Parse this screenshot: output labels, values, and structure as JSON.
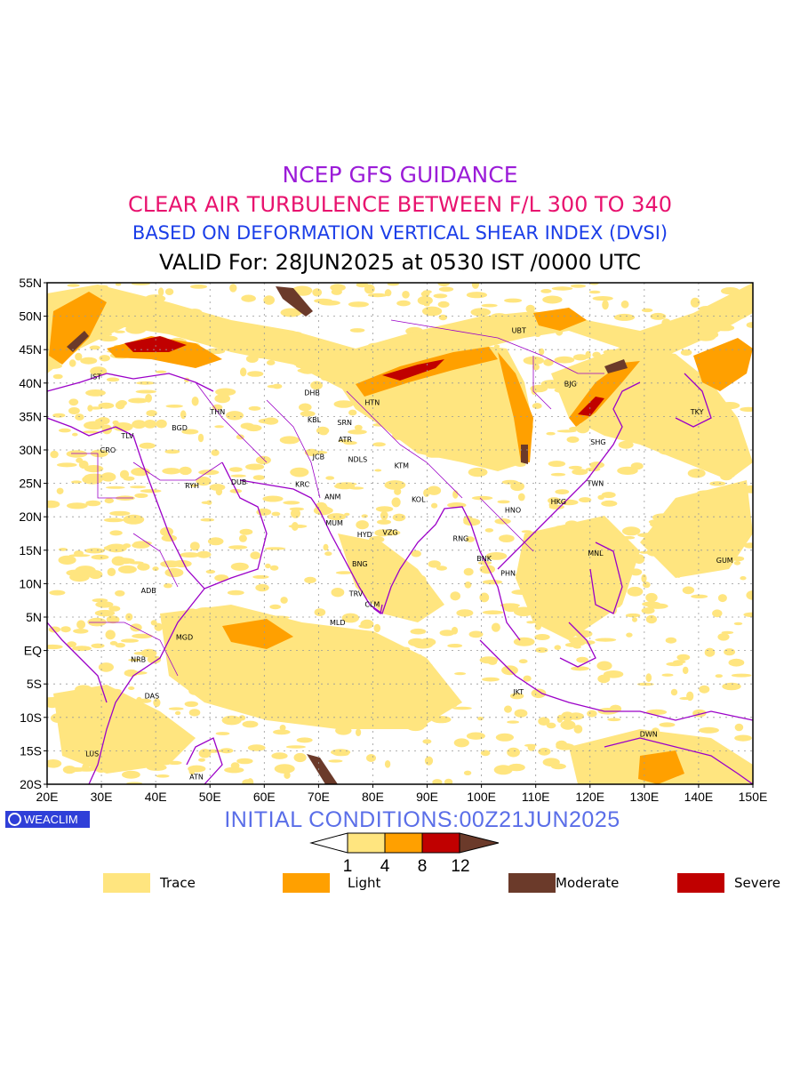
{
  "titles": {
    "line1": "NCEP GFS GUIDANCE",
    "line2": "CLEAR AIR TURBULENCE BETWEEN F/L 300 TO 340",
    "line3": "BASED ON DEFORMATION VERTICAL SHEAR INDEX (DVSI)",
    "line4": "VALID For: 28JUN2025 at 0530 IST /0000 UTC"
  },
  "colors": {
    "line1": "#9b1cd8",
    "line2": "#e8126e",
    "line3": "#1b3ee8",
    "trace": "#ffe57f",
    "light": "#ffa000",
    "moderate": "#6b3a2a",
    "severe": "#c00000",
    "boundary": "#9b00c8",
    "init_text": "#5a6ee8"
  },
  "map": {
    "lat_labels": [
      "55N",
      "50N",
      "45N",
      "40N",
      "35N",
      "30N",
      "25N",
      "20N",
      "15N",
      "10N",
      "5N",
      "EQ",
      "5S",
      "10S",
      "15S",
      "20S"
    ],
    "lon_labels": [
      "20E",
      "30E",
      "40E",
      "50E",
      "60E",
      "70E",
      "80E",
      "90E",
      "100E",
      "110E",
      "120E",
      "130E",
      "140E",
      "150E"
    ],
    "stations": [
      {
        "code": "UBT",
        "lon": 106.9,
        "lat": 47.9
      },
      {
        "code": "BJG",
        "lon": 116.4,
        "lat": 39.9
      },
      {
        "code": "TKY",
        "lon": 139.7,
        "lat": 35.7
      },
      {
        "code": "SHG",
        "lon": 121.5,
        "lat": 31.2
      },
      {
        "code": "TWN",
        "lon": 121.0,
        "lat": 25.0
      },
      {
        "code": "HKG",
        "lon": 114.2,
        "lat": 22.3
      },
      {
        "code": "HNO",
        "lon": 105.8,
        "lat": 21.0
      },
      {
        "code": "MNL",
        "lon": 121.0,
        "lat": 14.6
      },
      {
        "code": "GUM",
        "lon": 144.8,
        "lat": 13.5
      },
      {
        "code": "BNK",
        "lon": 100.5,
        "lat": 13.8
      },
      {
        "code": "PHN",
        "lon": 104.9,
        "lat": 11.6
      },
      {
        "code": "RNG",
        "lon": 96.2,
        "lat": 16.8
      },
      {
        "code": "KTM",
        "lon": 85.3,
        "lat": 27.7
      },
      {
        "code": "KOL",
        "lon": 88.4,
        "lat": 22.6
      },
      {
        "code": "VZG",
        "lon": 83.2,
        "lat": 17.7
      },
      {
        "code": "HYD",
        "lon": 78.5,
        "lat": 17.4
      },
      {
        "code": "MUM",
        "lon": 72.9,
        "lat": 19.1
      },
      {
        "code": "BNG",
        "lon": 77.6,
        "lat": 13.0
      },
      {
        "code": "TRV",
        "lon": 76.9,
        "lat": 8.5
      },
      {
        "code": "CLM",
        "lon": 79.9,
        "lat": 6.9
      },
      {
        "code": "MLD",
        "lon": 73.5,
        "lat": 4.2
      },
      {
        "code": "NDLS",
        "lon": 77.2,
        "lat": 28.6
      },
      {
        "code": "JCB",
        "lon": 70.0,
        "lat": 29.0
      },
      {
        "code": "KRC",
        "lon": 67.0,
        "lat": 24.9
      },
      {
        "code": "ANM",
        "lon": 72.6,
        "lat": 23.0
      },
      {
        "code": "KBL",
        "lon": 69.2,
        "lat": 34.5
      },
      {
        "code": "SRN",
        "lon": 74.8,
        "lat": 34.1
      },
      {
        "code": "DHB",
        "lon": 68.8,
        "lat": 38.6
      },
      {
        "code": "HTN",
        "lon": 79.9,
        "lat": 37.1
      },
      {
        "code": "ATR",
        "lon": 74.9,
        "lat": 31.6
      },
      {
        "code": "THN",
        "lon": 51.4,
        "lat": 35.7
      },
      {
        "code": "BGD",
        "lon": 44.4,
        "lat": 33.3
      },
      {
        "code": "TLV",
        "lon": 34.8,
        "lat": 32.1
      },
      {
        "code": "CRO",
        "lon": 31.2,
        "lat": 30.0
      },
      {
        "code": "IST",
        "lon": 29.0,
        "lat": 41.0
      },
      {
        "code": "RYH",
        "lon": 46.7,
        "lat": 24.7
      },
      {
        "code": "DUB",
        "lon": 55.3,
        "lat": 25.2
      },
      {
        "code": "ADB",
        "lon": 38.7,
        "lat": 9.0
      },
      {
        "code": "MGD",
        "lon": 45.3,
        "lat": 2.0
      },
      {
        "code": "NRB",
        "lon": 36.8,
        "lat": -1.3
      },
      {
        "code": "DAS",
        "lon": 39.3,
        "lat": -6.8
      },
      {
        "code": "LUS",
        "lon": 28.3,
        "lat": -15.4
      },
      {
        "code": "ATN",
        "lon": 47.5,
        "lat": -18.9
      },
      {
        "code": "JKT",
        "lon": 106.8,
        "lat": -6.2
      },
      {
        "code": "DWN",
        "lon": 130.8,
        "lat": -12.5
      }
    ]
  },
  "initial_conditions": "INITIAL CONDITIONS:00Z21JUN2025",
  "logo_text": "WEACLIM",
  "colorbar_ticks": [
    "1",
    "4",
    "8",
    "12"
  ],
  "legend": [
    {
      "label": "Trace",
      "color": "#ffe57f"
    },
    {
      "label": "Light",
      "color": "#ffa000"
    },
    {
      "label": "Moderate",
      "color": "#6b3a2a"
    },
    {
      "label": "Severe",
      "color": "#c00000"
    }
  ]
}
